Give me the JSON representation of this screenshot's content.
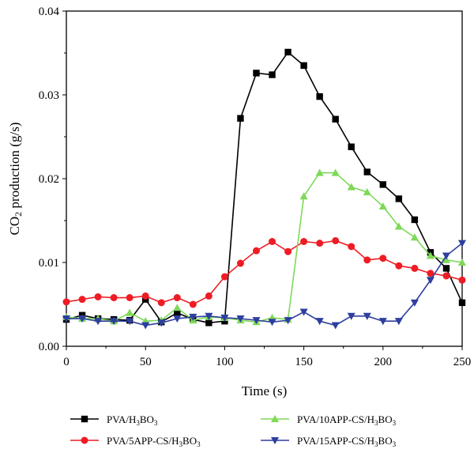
{
  "chart_data": {
    "type": "line",
    "xlabel": "Time (s)",
    "ylabel_main": "CO",
    "ylabel_sub": "2",
    "ylabel_rest": " production (g/s)",
    "xlim": [
      0,
      250
    ],
    "ylim": [
      0,
      0.04
    ],
    "x_ticks": [
      0,
      50,
      100,
      150,
      200,
      250
    ],
    "x_tick_labels": [
      "0",
      "50",
      "100",
      "150",
      "200",
      "250"
    ],
    "y_ticks": [
      0,
      0.01,
      0.02,
      0.03,
      0.04
    ],
    "y_tick_labels": [
      "0.00",
      "0.01",
      "0.02",
      "0.03",
      "0.04"
    ],
    "grid": false,
    "legend_position": "bottom",
    "series": [
      {
        "name_main": "PVA/H",
        "name_sub1": "3",
        "name_mid": "BO",
        "name_sub2": "3",
        "color": "#000000",
        "marker": "square",
        "x": [
          0,
          10,
          20,
          30,
          40,
          50,
          60,
          70,
          80,
          90,
          100,
          110,
          120,
          130,
          140,
          150,
          160,
          170,
          180,
          190,
          200,
          210,
          220,
          230,
          240,
          250
        ],
        "y": [
          0.0032,
          0.0037,
          0.0033,
          0.0032,
          0.0031,
          0.0056,
          0.0029,
          0.004,
          0.0032,
          0.0028,
          0.003,
          0.0272,
          0.0326,
          0.0324,
          0.0351,
          0.0335,
          0.0298,
          0.0271,
          0.0238,
          0.0208,
          0.0193,
          0.0176,
          0.0151,
          0.0112,
          0.0093,
          0.0052
        ]
      },
      {
        "name_main": "PVA/5APP-CS/H",
        "name_sub1": "3",
        "name_mid": "BO",
        "name_sub2": "3",
        "color": "#ee1c25",
        "marker": "circle",
        "x": [
          0,
          10,
          20,
          30,
          40,
          50,
          60,
          70,
          80,
          90,
          100,
          110,
          120,
          130,
          140,
          150,
          160,
          170,
          180,
          190,
          200,
          210,
          220,
          230,
          240,
          250
        ],
        "y": [
          0.0053,
          0.0056,
          0.0059,
          0.0058,
          0.0058,
          0.006,
          0.0052,
          0.0058,
          0.005,
          0.006,
          0.0083,
          0.0099,
          0.0114,
          0.0125,
          0.0113,
          0.0125,
          0.0123,
          0.0126,
          0.0119,
          0.0103,
          0.0105,
          0.0096,
          0.0093,
          0.0087,
          0.0084,
          0.0079
        ]
      },
      {
        "name_main": "PVA/10APP-CS/H",
        "name_sub1": "3",
        "name_mid": "BO",
        "name_sub2": "3",
        "color": "#7ed957",
        "marker": "triangle-up",
        "x": [
          0,
          10,
          20,
          30,
          40,
          50,
          60,
          70,
          80,
          90,
          100,
          110,
          120,
          130,
          140,
          150,
          160,
          170,
          180,
          190,
          200,
          210,
          220,
          230,
          240,
          250
        ],
        "y": [
          0.0035,
          0.0033,
          0.0033,
          0.003,
          0.004,
          0.003,
          0.0031,
          0.0046,
          0.0031,
          0.0035,
          0.0034,
          0.0031,
          0.0029,
          0.0034,
          0.0032,
          0.0179,
          0.0207,
          0.0207,
          0.019,
          0.0184,
          0.0167,
          0.0143,
          0.013,
          0.0108,
          0.0103,
          0.01
        ]
      },
      {
        "name_main": "PVA/15APP-CS/H",
        "name_sub1": "3",
        "name_mid": "BO",
        "name_sub2": "3",
        "color": "#2e3f9e",
        "marker": "triangle-down",
        "x": [
          0,
          10,
          20,
          30,
          40,
          50,
          60,
          70,
          80,
          90,
          100,
          110,
          120,
          130,
          140,
          150,
          160,
          170,
          180,
          190,
          200,
          210,
          220,
          230,
          240,
          250
        ],
        "y": [
          0.0033,
          0.0033,
          0.003,
          0.003,
          0.003,
          0.0025,
          0.0028,
          0.0033,
          0.0035,
          0.0036,
          0.0034,
          0.0033,
          0.0031,
          0.0029,
          0.0031,
          0.0041,
          0.003,
          0.0025,
          0.0036,
          0.0036,
          0.003,
          0.003,
          0.0052,
          0.0079,
          0.0108,
          0.0123
        ]
      }
    ]
  }
}
